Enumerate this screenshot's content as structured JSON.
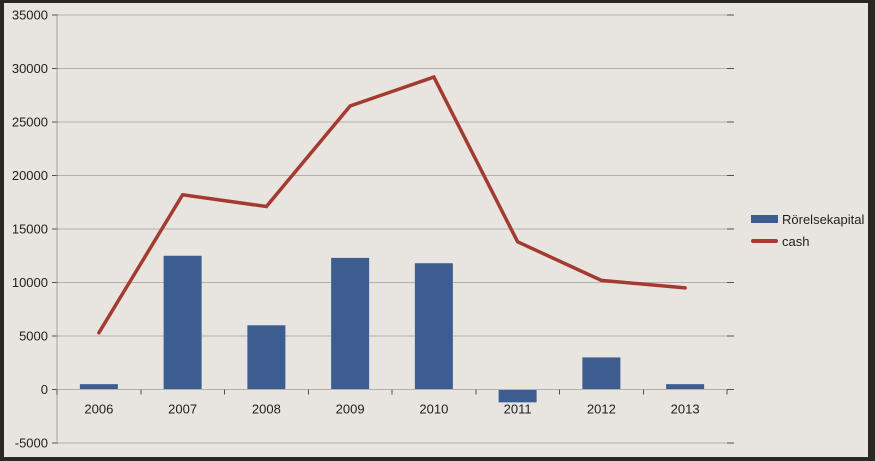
{
  "colors": {
    "background": "#e8e5e0",
    "frame_border": "#2b2824",
    "gridline": "#b3afaa",
    "axis_line": "#a5a19c",
    "tick_dark": "#55514c",
    "bar": "#3d5d90",
    "line": "#a33b31",
    "text": "#1e1e1e"
  },
  "chart_data": {
    "type": "bar",
    "subtype": "bar-and-line-combo",
    "title": "",
    "xlabel": "",
    "ylabel": "",
    "categories": [
      "2006",
      "2007",
      "2008",
      "2009",
      "2010",
      "2011",
      "2012",
      "2013"
    ],
    "series": [
      {
        "name": "Rörelsekapital",
        "type": "bar",
        "values": [
          500,
          12500,
          6000,
          12300,
          11800,
          -1200,
          3000,
          500
        ]
      },
      {
        "name": "cash",
        "type": "line",
        "values": [
          5300,
          18200,
          17100,
          26500,
          29200,
          13800,
          10200,
          9500
        ]
      }
    ],
    "ylim": [
      -5000,
      35000
    ],
    "ytick_step": 5000,
    "yticks": [
      "35000",
      "30000",
      "25000",
      "20000",
      "15000",
      "10000",
      "5000",
      "0",
      "-5000"
    ],
    "grid": true,
    "legend_position": "right-middle"
  },
  "legend": {
    "items": [
      {
        "label": "Rörelsekapital",
        "swatch": "bar-swatch"
      },
      {
        "label": "cash",
        "swatch": "line-swatch"
      }
    ]
  }
}
